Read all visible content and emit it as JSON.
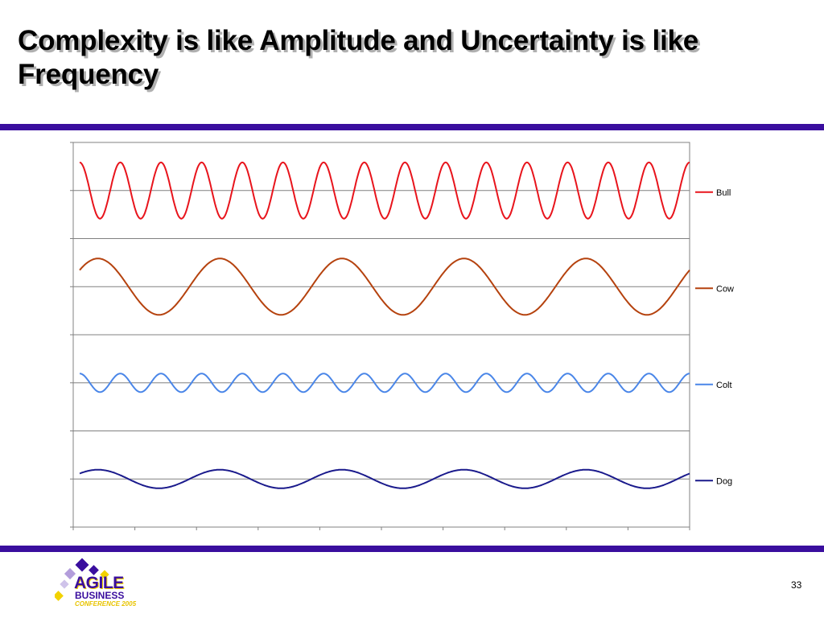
{
  "slide": {
    "title": "Complexity is like Amplitude and Uncertainty is like Frequency",
    "page_number": "33"
  },
  "logo": {
    "word1": "AGILE",
    "word2": "BUSINESS",
    "word3": "CONFERENCE 2005"
  },
  "colors": {
    "rule": "#3a0e9e",
    "bull": "#e8141c",
    "cow": "#b5420e",
    "colt": "#4a86e8",
    "dog": "#1a1a8c"
  },
  "chart_data": {
    "type": "line",
    "grid": true,
    "legend_position": "right",
    "series": [
      {
        "name": "Bull",
        "color": "#e8141c",
        "amplitude": 1.0,
        "period": 1.0,
        "phase": 0.25
      },
      {
        "name": "Cow",
        "color": "#b5420e",
        "amplitude": 1.0,
        "period": 3.0,
        "phase": 0.1
      },
      {
        "name": "Colt",
        "color": "#4a86e8",
        "amplitude": 0.33,
        "period": 1.0,
        "phase": 0.25
      },
      {
        "name": "Dog",
        "color": "#1a1a8c",
        "amplitude": 0.33,
        "period": 3.0,
        "phase": 0.1
      }
    ],
    "x_range": [
      0,
      15
    ]
  }
}
